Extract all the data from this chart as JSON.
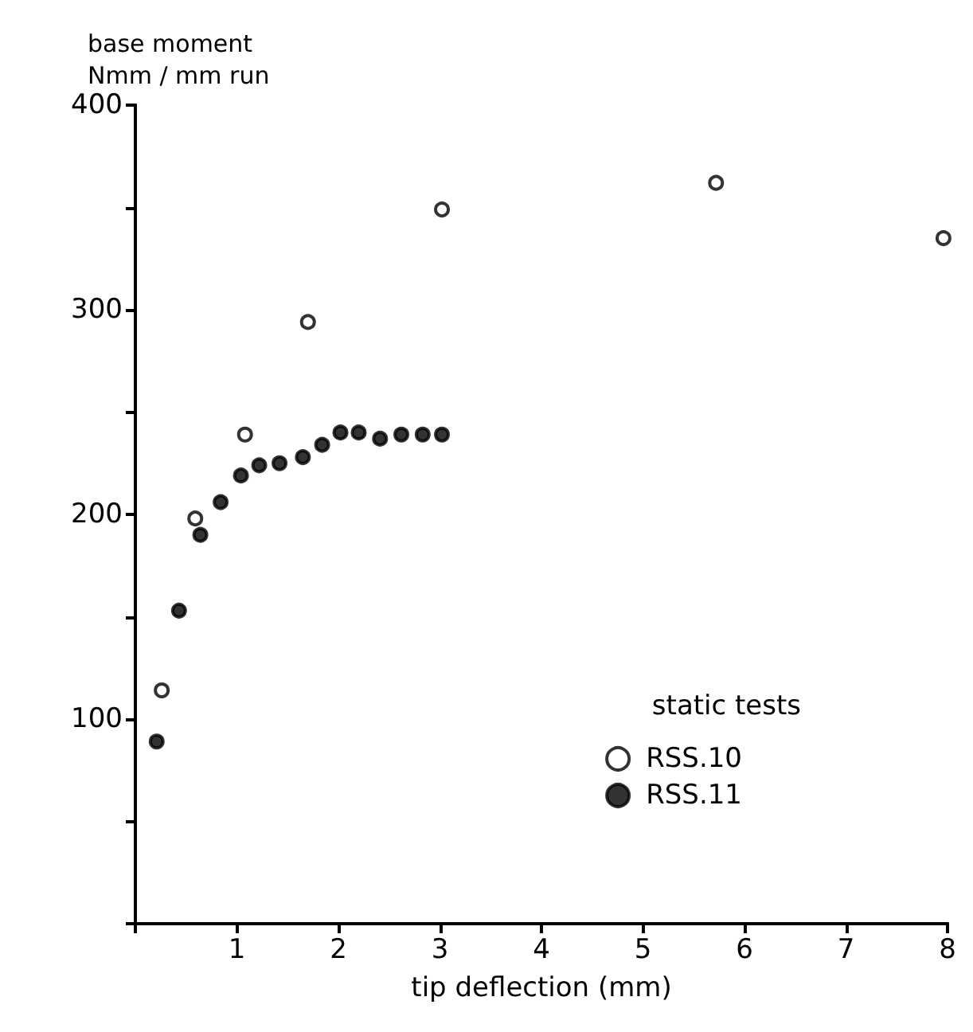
{
  "chart_data": {
    "type": "scatter",
    "xlabel": "tip deflection (mm)",
    "ylabel": "base moment\nNmm / mm run",
    "legend_title": "static tests",
    "xlim": [
      0,
      8
    ],
    "xticks": [
      {
        "value": 0,
        "label": null
      },
      1,
      2,
      3,
      4,
      5,
      6,
      7,
      8
    ],
    "ylim": [
      0,
      400
    ],
    "yticks": [
      {
        "value": 0,
        "label": null
      },
      {
        "value": 50,
        "label": null
      },
      100,
      {
        "value": 150,
        "label": null
      },
      200,
      {
        "value": 250,
        "label": null
      },
      300,
      {
        "value": 350,
        "label": null
      },
      400
    ],
    "grid": false,
    "legend": "bottom right",
    "series": [
      {
        "name": "RSS.10",
        "color": "#000000",
        "marker": "emptyCircle",
        "x": [
          0.26,
          0.59,
          1.08,
          1.7,
          3.02,
          5.72,
          7.96
        ],
        "values": [
          114,
          198,
          239,
          294,
          349,
          362,
          335
        ]
      },
      {
        "name": "RSS.11",
        "color": "#000000",
        "marker": "circle",
        "x": [
          0.21,
          0.43,
          0.64,
          0.84,
          1.04,
          1.22,
          1.42,
          1.65,
          1.84,
          2.02,
          2.2,
          2.41,
          2.62,
          2.83,
          3.02
        ],
        "values": [
          89,
          153,
          190,
          206,
          219,
          224,
          225,
          228,
          234,
          240,
          240,
          237,
          239,
          239,
          239
        ]
      }
    ]
  }
}
